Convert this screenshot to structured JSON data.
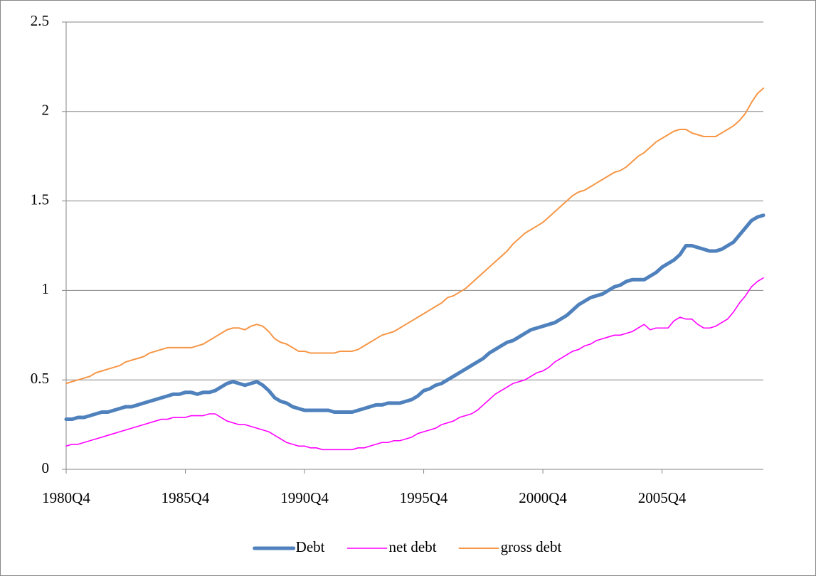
{
  "chart_data": {
    "type": "line",
    "legend": "bottom",
    "grid": true,
    "categories": [
      "1980Q4",
      null,
      null,
      null,
      null,
      null,
      null,
      null,
      null,
      null,
      null,
      null,
      null,
      null,
      null,
      null,
      null,
      null,
      null,
      null,
      "1985Q4",
      null,
      null,
      null,
      null,
      null,
      null,
      null,
      null,
      null,
      null,
      null,
      null,
      null,
      null,
      null,
      null,
      null,
      null,
      null,
      "1990Q4",
      null,
      null,
      null,
      null,
      null,
      null,
      null,
      null,
      null,
      null,
      null,
      null,
      null,
      null,
      null,
      null,
      null,
      null,
      null,
      "1995Q4",
      null,
      null,
      null,
      null,
      null,
      null,
      null,
      null,
      null,
      null,
      null,
      null,
      null,
      null,
      null,
      null,
      null,
      null,
      null,
      "2000Q4",
      null,
      null,
      null,
      null,
      null,
      null,
      null,
      null,
      null,
      null,
      null,
      null,
      null,
      null,
      null,
      null,
      null,
      null,
      null,
      "2005Q4",
      null,
      null,
      null,
      null,
      null,
      null,
      null,
      null,
      null,
      null,
      null,
      null,
      null,
      null,
      null,
      null,
      null
    ],
    "ylim": [
      0,
      2.5
    ],
    "yticks": [
      0,
      0.5,
      1,
      1.5,
      2,
      2.5
    ],
    "series": [
      {
        "name": "Debt",
        "color": "#4f81bd",
        "values": [
          0.28,
          0.28,
          0.29,
          0.29,
          0.3,
          0.31,
          0.32,
          0.32,
          0.33,
          0.34,
          0.35,
          0.35,
          0.36,
          0.37,
          0.38,
          0.39,
          0.4,
          0.41,
          0.42,
          0.42,
          0.43,
          0.43,
          0.42,
          0.43,
          0.43,
          0.44,
          0.46,
          0.48,
          0.49,
          0.48,
          0.47,
          0.48,
          0.49,
          0.47,
          0.44,
          0.4,
          0.38,
          0.37,
          0.35,
          0.34,
          0.33,
          0.33,
          0.33,
          0.33,
          0.33,
          0.32,
          0.32,
          0.32,
          0.32,
          0.33,
          0.34,
          0.35,
          0.36,
          0.36,
          0.37,
          0.37,
          0.37,
          0.38,
          0.39,
          0.41,
          0.44,
          0.45,
          0.47,
          0.48,
          0.5,
          0.52,
          0.54,
          0.56,
          0.58,
          0.6,
          0.62,
          0.65,
          0.67,
          0.69,
          0.71,
          0.72,
          0.74,
          0.76,
          0.78,
          0.79,
          0.8,
          0.81,
          0.82,
          0.84,
          0.86,
          0.89,
          0.92,
          0.94,
          0.96,
          0.97,
          0.98,
          1.0,
          1.02,
          1.03,
          1.05,
          1.06,
          1.06,
          1.06,
          1.08,
          1.1,
          1.13,
          1.15,
          1.17,
          1.2,
          1.25,
          1.25,
          1.24,
          1.23,
          1.22,
          1.22,
          1.23,
          1.25,
          1.27,
          1.31,
          1.35,
          1.39,
          1.41,
          1.42
        ]
      },
      {
        "name": "net debt",
        "color": "#ff00ff",
        "values": [
          0.13,
          0.14,
          0.14,
          0.15,
          0.16,
          0.17,
          0.18,
          0.19,
          0.2,
          0.21,
          0.22,
          0.23,
          0.24,
          0.25,
          0.26,
          0.27,
          0.28,
          0.28,
          0.29,
          0.29,
          0.29,
          0.3,
          0.3,
          0.3,
          0.31,
          0.31,
          0.29,
          0.27,
          0.26,
          0.25,
          0.25,
          0.24,
          0.23,
          0.22,
          0.21,
          0.19,
          0.17,
          0.15,
          0.14,
          0.13,
          0.13,
          0.12,
          0.12,
          0.11,
          0.11,
          0.11,
          0.11,
          0.11,
          0.11,
          0.12,
          0.12,
          0.13,
          0.14,
          0.15,
          0.15,
          0.16,
          0.16,
          0.17,
          0.18,
          0.2,
          0.21,
          0.22,
          0.23,
          0.25,
          0.26,
          0.27,
          0.29,
          0.3,
          0.31,
          0.33,
          0.36,
          0.39,
          0.42,
          0.44,
          0.46,
          0.48,
          0.49,
          0.5,
          0.52,
          0.54,
          0.55,
          0.57,
          0.6,
          0.62,
          0.64,
          0.66,
          0.67,
          0.69,
          0.7,
          0.72,
          0.73,
          0.74,
          0.75,
          0.75,
          0.76,
          0.77,
          0.79,
          0.81,
          0.78,
          0.79,
          0.79,
          0.79,
          0.83,
          0.85,
          0.84,
          0.84,
          0.81,
          0.79,
          0.79,
          0.8,
          0.82,
          0.84,
          0.88,
          0.93,
          0.97,
          1.02,
          1.05,
          1.07
        ]
      },
      {
        "name": "gross debt",
        "color": "#f79646",
        "values": [
          0.48,
          0.49,
          0.5,
          0.51,
          0.52,
          0.54,
          0.55,
          0.56,
          0.57,
          0.58,
          0.6,
          0.61,
          0.62,
          0.63,
          0.65,
          0.66,
          0.67,
          0.68,
          0.68,
          0.68,
          0.68,
          0.68,
          0.69,
          0.7,
          0.72,
          0.74,
          0.76,
          0.78,
          0.79,
          0.79,
          0.78,
          0.8,
          0.81,
          0.8,
          0.77,
          0.73,
          0.71,
          0.7,
          0.68,
          0.66,
          0.66,
          0.65,
          0.65,
          0.65,
          0.65,
          0.65,
          0.66,
          0.66,
          0.66,
          0.67,
          0.69,
          0.71,
          0.73,
          0.75,
          0.76,
          0.77,
          0.79,
          0.81,
          0.83,
          0.85,
          0.87,
          0.89,
          0.91,
          0.93,
          0.96,
          0.97,
          0.99,
          1.01,
          1.04,
          1.07,
          1.1,
          1.13,
          1.16,
          1.19,
          1.22,
          1.26,
          1.29,
          1.32,
          1.34,
          1.36,
          1.38,
          1.41,
          1.44,
          1.47,
          1.5,
          1.53,
          1.55,
          1.56,
          1.58,
          1.6,
          1.62,
          1.64,
          1.66,
          1.67,
          1.69,
          1.72,
          1.75,
          1.77,
          1.8,
          1.83,
          1.85,
          1.87,
          1.89,
          1.9,
          1.9,
          1.88,
          1.87,
          1.86,
          1.86,
          1.86,
          1.88,
          1.9,
          1.92,
          1.95,
          1.99,
          2.05,
          2.1,
          2.13
        ]
      }
    ]
  }
}
